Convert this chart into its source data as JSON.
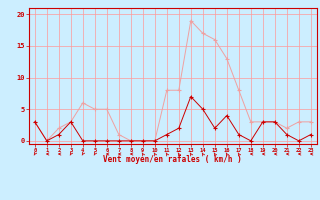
{
  "hours": [
    0,
    1,
    2,
    3,
    4,
    5,
    6,
    7,
    8,
    9,
    10,
    11,
    12,
    13,
    14,
    15,
    16,
    17,
    18,
    19,
    20,
    21,
    22,
    23
  ],
  "wind_avg": [
    3,
    0,
    1,
    3,
    0,
    0,
    0,
    0,
    0,
    0,
    0,
    1,
    2,
    7,
    5,
    2,
    4,
    1,
    0,
    3,
    3,
    1,
    0,
    1
  ],
  "wind_gust": [
    3,
    0,
    2,
    3,
    6,
    5,
    5,
    1,
    0,
    0,
    0,
    8,
    8,
    19,
    17,
    16,
    13,
    8,
    3,
    3,
    3,
    2,
    3,
    3
  ],
  "line_color_avg": "#cc0000",
  "line_color_gust": "#f0a0a0",
  "marker_color_avg": "#cc0000",
  "marker_color_gust": "#f0a0a0",
  "bg_color": "#cceeff",
  "grid_color": "#ff9999",
  "xlabel": "Vent moyen/en rafales ( km/h )",
  "ylabel_ticks": [
    0,
    5,
    10,
    15,
    20
  ],
  "ylim": [
    -0.5,
    21
  ],
  "xlim": [
    -0.5,
    23.5
  ],
  "tick_color": "#cc0000",
  "label_color": "#cc0000",
  "spine_color": "#cc0000"
}
